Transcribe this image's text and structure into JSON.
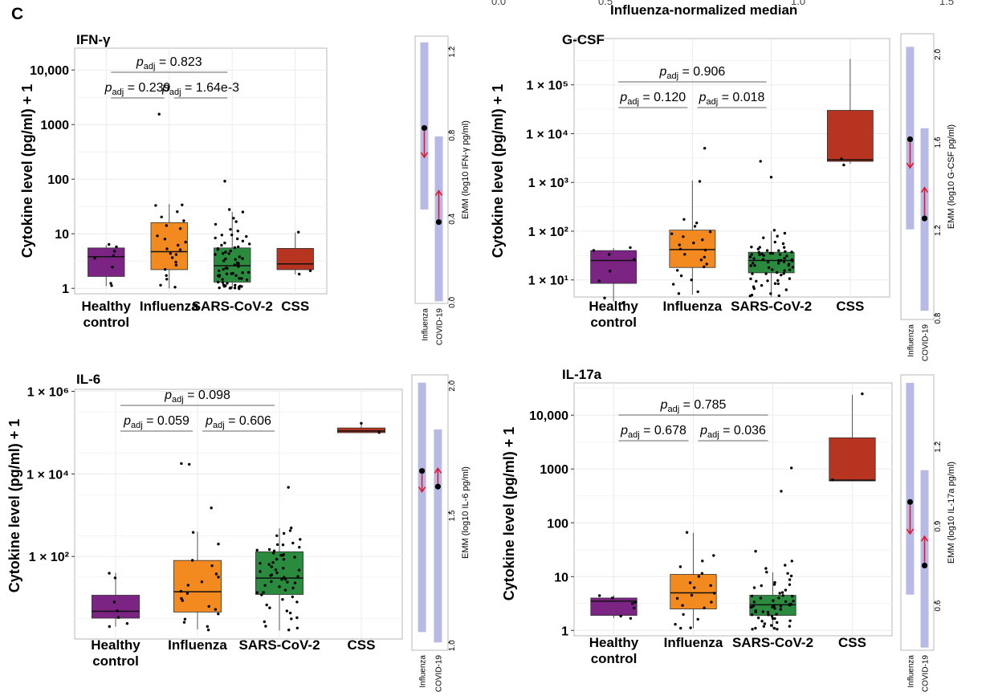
{
  "figure": {
    "panel_letter": "C",
    "top_label": "Influenza-normalized median",
    "top_ticks": [
      "0.0",
      "0.5",
      "1.0",
      "1.5"
    ]
  },
  "colors": {
    "healthy": "#7b2483",
    "influenza": "#f28a1f",
    "sars": "#2a8a3e",
    "css": "#b63420",
    "emm_band": "#aaaee0",
    "arrow": "#e0182f"
  },
  "chart_data": [
    {
      "title": "IFN-γ",
      "type": "box",
      "ylabel": "Cytokine level (pg/ml) + 1",
      "yscale": "log",
      "ylim_log10": [
        -0.1,
        4.4
      ],
      "ytick_log10": [
        0,
        1,
        2,
        3,
        4
      ],
      "ytick_labels": [
        "1",
        "10",
        "100",
        "1000",
        "10,000"
      ],
      "categories": [
        {
          "label": [
            "Healthy",
            "control"
          ],
          "color": "#7b2483",
          "q1": 1.65,
          "median": 3.8,
          "q3": 5.5,
          "whisker_lo": 1.1,
          "whisker_hi": 6.2,
          "points": [
            1.1,
            1.3,
            2.5,
            3.7,
            4.1,
            4.7,
            5.6,
            6.2
          ]
        },
        {
          "label": [
            "Influenza"
          ],
          "color": "#f28a1f",
          "q1": 2.2,
          "median": 4.7,
          "q3": 16,
          "whisker_lo": 1.0,
          "whisker_hi": 35,
          "points": [
            1600,
            35,
            33,
            25,
            20,
            18,
            14,
            12,
            9,
            8,
            7,
            6,
            5.5,
            5,
            4.5,
            4,
            3.5,
            3,
            2.6,
            2.2,
            1.8,
            1.4,
            1.1,
            1.0
          ]
        },
        {
          "label": [
            "SARS-CoV-2"
          ],
          "color": "#2a8a3e",
          "q1": 1.3,
          "median": 2.6,
          "q3": 5.5,
          "whisker_lo": 1.0,
          "whisker_hi": 25,
          "points": [
            90,
            27,
            25,
            20,
            17,
            15,
            12,
            11,
            10,
            9.5,
            9,
            8.5,
            8,
            7.5,
            7,
            6.5,
            6.2,
            6,
            5.7,
            5.4,
            5.2,
            5,
            4.8,
            4.5,
            4.3,
            4.1,
            3.9,
            3.7,
            3.5,
            3.3,
            3.2,
            3,
            2.9,
            2.8,
            2.7,
            2.6,
            2.5,
            2.4,
            2.3,
            2.2,
            2.1,
            2,
            1.95,
            1.9,
            1.85,
            1.8,
            1.75,
            1.7,
            1.65,
            1.6,
            1.55,
            1.5,
            1.45,
            1.4,
            1.35,
            1.3,
            1.25,
            1.2,
            1.18,
            1.15,
            1.12,
            1.1,
            1.08,
            1.05,
            1.03,
            1.02,
            1.01,
            1.0,
            1.0,
            1.0
          ]
        },
        {
          "label": [
            "CSS"
          ],
          "color": "#b63420",
          "q1": 2.2,
          "median": 2.8,
          "q3": 5.4,
          "whisker_lo": 1.8,
          "whisker_hi": 10.5,
          "points": [
            10.5,
            2.2,
            1.8
          ]
        }
      ],
      "pvalues": [
        {
          "text": "= 0.823",
          "from": 0,
          "to": 2,
          "level": 2
        },
        {
          "text": "= 0.239",
          "from": 0,
          "to": 1,
          "level": 1
        },
        {
          "text": "= 1.64e-3",
          "from": 1,
          "to": 2,
          "level": 1
        }
      ],
      "emm": {
        "ylabel": "EMM (log10 IFN-γ pg/ml)",
        "ylim": [
          -0.02,
          1.26
        ],
        "ticks": [
          0.0,
          0.4,
          0.8,
          1.2
        ],
        "tick_labels": [
          "0.0",
          "0.4",
          "0.8",
          "1.2"
        ],
        "influenza": {
          "mean": 0.82,
          "lo": 0.43,
          "hi": 1.23,
          "arrow_to": 0.68
        },
        "covid": {
          "mean": 0.37,
          "lo": -0.01,
          "hi": 0.78,
          "arrow_to": 0.52
        },
        "xlabels": [
          "Influenza",
          "COVID-19"
        ]
      }
    },
    {
      "title": "G-CSF",
      "type": "box",
      "ylabel": "Cytokine level (pg/ml) + 1",
      "yscale": "log",
      "ylim_log10": [
        0.65,
        5.95
      ],
      "ytick_log10": [
        1,
        2,
        3,
        4,
        5
      ],
      "ytick_labels": [
        "1 × 10¹",
        "1 × 10²",
        "1 × 10³",
        "1 × 10⁴",
        "1 × 10⁵"
      ],
      "categories": [
        {
          "label": [
            "Healthy",
            "control"
          ],
          "color": "#7b2483",
          "q1": 8.5,
          "median": 25,
          "q3": 40,
          "whisker_lo": 3.6,
          "whisker_hi": 45,
          "points": [
            45,
            40,
            35,
            25,
            15,
            10,
            4.5,
            3.6
          ]
        },
        {
          "label": [
            "Influenza"
          ],
          "color": "#f28a1f",
          "q1": 18,
          "median": 42,
          "q3": 105,
          "whisker_lo": 5,
          "whisker_hi": 1100,
          "points": [
            5000,
            1100,
            180,
            150,
            120,
            100,
            90,
            80,
            70,
            60,
            50,
            45,
            40,
            35,
            30,
            25,
            22,
            18,
            15,
            12,
            10,
            8,
            6,
            5
          ]
        },
        {
          "label": [
            "SARS-CoV-2"
          ],
          "color": "#2a8a3e",
          "q1": 14,
          "median": 25,
          "q3": 37,
          "whisker_lo": 4.5,
          "whisker_hi": 100,
          "points": [
            2800,
            1300,
            100,
            90,
            80,
            70,
            60,
            55,
            50,
            48,
            45,
            42,
            40,
            38,
            36,
            35,
            34,
            33,
            32,
            31,
            30,
            29,
            28,
            27,
            26,
            25,
            24,
            23,
            22,
            21,
            20,
            19,
            18,
            17,
            16,
            15,
            14,
            13,
            12,
            11,
            10,
            9.5,
            9,
            8.5,
            8,
            7.5,
            7,
            6.5,
            6,
            5.5,
            5,
            4.7,
            4.5,
            44,
            39,
            37,
            34,
            29,
            26,
            23,
            21,
            19,
            17,
            15,
            13,
            11
          ]
        },
        {
          "label": [
            "CSS"
          ],
          "color": "#b63420",
          "q1": 2700,
          "median": 2900,
          "q3": 30000,
          "whisker_lo": 2400,
          "whisker_hi": 340000,
          "points": [
            2400,
            2900
          ]
        }
      ],
      "pvalues": [
        {
          "text": "= 0.906",
          "from": 0,
          "to": 2,
          "level": 2
        },
        {
          "text": "= 0.120",
          "from": 0,
          "to": 1,
          "level": 1
        },
        {
          "text": "= 0.018",
          "from": 1,
          "to": 2,
          "level": 1
        }
      ],
      "emm": {
        "ylabel": "EMM (log10 G-CSF pg/ml)",
        "ylim": [
          0.78,
          2.08
        ],
        "ticks": [
          0.8,
          1.2,
          1.6,
          2.0
        ],
        "tick_labels": [
          "0.8",
          "1.2",
          "1.6",
          "2.0"
        ],
        "influenza": {
          "mean": 1.6,
          "lo": 1.19,
          "hi": 2.02,
          "arrow_to": 1.47
        },
        "covid": {
          "mean": 1.24,
          "lo": 0.82,
          "hi": 1.65,
          "arrow_to": 1.38
        },
        "xlabels": [
          "Influenza",
          "COVID-19"
        ]
      }
    },
    {
      "title": "IL-6",
      "type": "box",
      "ylabel": "Cytokine level (pg/ml) + 1",
      "yscale": "log",
      "ylim_log10": [
        0.0,
        6.05
      ],
      "ytick_log10": [
        2,
        4,
        6
      ],
      "ytick_labels": [
        "1 × 10²",
        "1 × 10⁴",
        "1 × 10⁶"
      ],
      "categories": [
        {
          "label": [
            "Healthy",
            "control"
          ],
          "color": "#7b2483",
          "q1": 3.2,
          "median": 4.7,
          "q3": 11.5,
          "whisker_lo": 2.0,
          "whisker_hi": 40,
          "points": [
            40,
            30,
            8,
            4.5,
            3.5,
            2.5,
            2.0
          ]
        },
        {
          "label": [
            "Influenza"
          ],
          "color": "#f28a1f",
          "q1": 4.5,
          "median": 14,
          "q3": 80,
          "whisker_lo": 1.7,
          "whisker_hi": 400,
          "points": [
            18000,
            17000,
            1500,
            400,
            200,
            80,
            60,
            40,
            30,
            25,
            20,
            15,
            12,
            10,
            8,
            6,
            5,
            4,
            3,
            2.5,
            2,
            1.7
          ]
        },
        {
          "label": [
            "SARS-CoV-2"
          ],
          "color": "#2a8a3e",
          "q1": 12,
          "median": 30,
          "q3": 130,
          "whisker_lo": 1.6,
          "whisker_hi": 480,
          "points": [
            5000,
            480,
            400,
            350,
            300,
            260,
            220,
            200,
            180,
            160,
            140,
            130,
            120,
            110,
            100,
            90,
            80,
            70,
            65,
            60,
            55,
            50,
            45,
            40,
            36,
            32,
            30,
            28,
            26,
            24,
            22,
            20,
            18,
            16,
            14,
            12,
            10,
            9,
            8,
            7,
            6,
            5,
            4,
            3.5,
            3,
            2.5,
            2,
            1.8,
            1.6,
            150,
            110,
            85,
            62,
            48,
            34,
            25,
            19,
            13
          ]
        },
        {
          "label": [
            "CSS"
          ],
          "color": "#b63420",
          "q1": 100000,
          "median": 110000,
          "q3": 130000,
          "whisker_lo": 100000,
          "whisker_hi": 180000,
          "points": [
            180000,
            105000
          ]
        }
      ],
      "pvalues": [
        {
          "text": "= 0.098",
          "from": 0,
          "to": 2,
          "level": 2
        },
        {
          "text": "= 0.059",
          "from": 0,
          "to": 1,
          "level": 1
        },
        {
          "text": "= 0.606",
          "from": 1,
          "to": 2,
          "level": 1
        }
      ],
      "emm": {
        "ylabel": "EMM (log10 IL-6 pg/ml)",
        "ylim": [
          0.97,
          2.03
        ],
        "ticks": [
          1.0,
          1.5,
          2.0
        ],
        "tick_labels": [
          "1.0",
          "1.5",
          "2.0"
        ],
        "influenza": {
          "mean": 1.66,
          "lo": 1.04,
          "hi": 2.0,
          "arrow_to": 1.58
        },
        "covid": {
          "mean": 1.6,
          "lo": 1.0,
          "hi": 1.82,
          "arrow_to": 1.67
        },
        "xlabels": [
          "Influenza",
          "COVID-19"
        ]
      }
    },
    {
      "title": "IL-17a",
      "type": "box",
      "ylabel": "Cytokine level (pg/ml) + 1",
      "yscale": "log",
      "ylim_log10": [
        -0.1,
        4.6
      ],
      "ytick_log10": [
        0,
        1,
        2,
        3,
        4
      ],
      "ytick_labels": [
        "1",
        "10",
        "100",
        "1000",
        "10,000"
      ],
      "categories": [
        {
          "label": [
            "Healthy",
            "control"
          ],
          "color": "#7b2483",
          "q1": 1.9,
          "median": 3.5,
          "q3": 4.0,
          "whisker_lo": 1.7,
          "whisker_hi": 4.5,
          "points": [
            4.5,
            4.0,
            3.5,
            3.0,
            2.5,
            1.9,
            1.7
          ]
        },
        {
          "label": [
            "Influenza"
          ],
          "color": "#f28a1f",
          "q1": 2.5,
          "median": 5.0,
          "q3": 11,
          "whisker_lo": 1.1,
          "whisker_hi": 65,
          "points": [
            65,
            25,
            20,
            15,
            12,
            10,
            8,
            7,
            6,
            5,
            4.5,
            4,
            3.5,
            3,
            2.5,
            2,
            1.6,
            1.3,
            1.1,
            1.1
          ]
        },
        {
          "label": [
            "SARS-CoV-2"
          ],
          "color": "#2a8a3e",
          "q1": 1.9,
          "median": 3.0,
          "q3": 4.5,
          "whisker_lo": 1.1,
          "whisker_hi": 12,
          "points": [
            1000,
            400,
            30,
            20,
            16,
            14,
            12,
            11,
            10,
            9,
            8,
            7.5,
            7,
            6.5,
            6,
            5.5,
            5,
            4.8,
            4.5,
            4.2,
            4,
            3.8,
            3.6,
            3.4,
            3.2,
            3.1,
            3,
            2.9,
            2.8,
            2.7,
            2.6,
            2.5,
            2.4,
            2.3,
            2.2,
            2.1,
            2,
            1.9,
            1.8,
            1.7,
            1.6,
            1.5,
            1.4,
            1.3,
            1.2,
            1.15,
            1.1,
            1.1,
            1.1,
            1.1,
            3.3,
            2.95,
            2.65,
            2.35,
            2.05,
            1.75,
            1.45,
            1.25,
            4.4,
            3.7
          ]
        },
        {
          "label": [
            "CSS"
          ],
          "color": "#b63420",
          "q1": 600,
          "median": 620,
          "q3": 3800,
          "whisker_lo": 600,
          "whisker_hi": 24000,
          "points": [
            24000,
            620
          ]
        }
      ],
      "pvalues": [
        {
          "text": "= 0.785",
          "from": 0,
          "to": 2,
          "level": 2
        },
        {
          "text": "= 0.678",
          "from": 0,
          "to": 1,
          "level": 1
        },
        {
          "text": "= 0.036",
          "from": 1,
          "to": 2,
          "level": 1
        }
      ],
      "emm": {
        "ylabel": "EMM (log10 IL-17a pg/ml)",
        "ylim": [
          0.42,
          1.46
        ],
        "ticks": [
          0.6,
          0.9,
          1.2
        ],
        "tick_labels": [
          "0.6",
          "0.9",
          "1.2"
        ],
        "influenza": {
          "mean": 0.98,
          "lo": 0.63,
          "hi": 1.43,
          "arrow_to": 0.86
        },
        "covid": {
          "mean": 0.74,
          "lo": 0.43,
          "hi": 1.1,
          "arrow_to": 0.85
        },
        "xlabels": [
          "Influenza",
          "COVID-19"
        ]
      }
    }
  ]
}
